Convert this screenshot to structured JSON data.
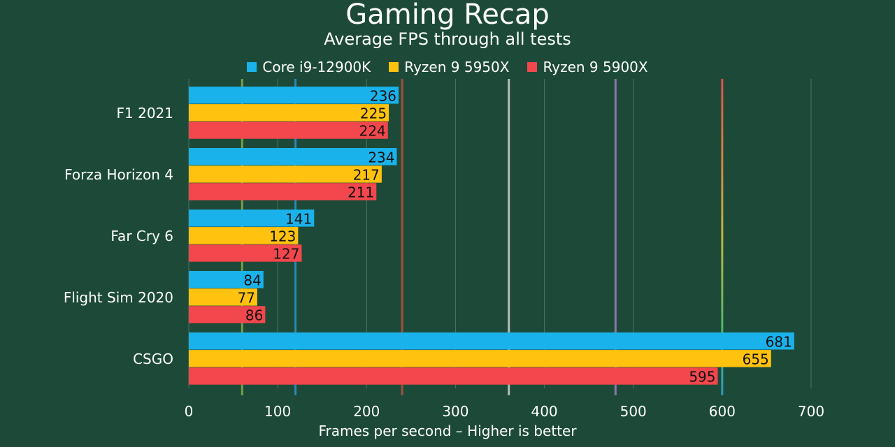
{
  "chart_data": {
    "type": "bar",
    "orientation": "horizontal",
    "title": "Gaming Recap",
    "subtitle": "Average FPS through all tests",
    "xlabel": "Frames per second – Higher is better",
    "ylabel": "",
    "xlim": [
      0,
      700
    ],
    "xticks": [
      0,
      100,
      200,
      300,
      400,
      500,
      600,
      700
    ],
    "grid": true,
    "legend_placement": "top",
    "reference_lines": [
      60,
      120,
      240,
      360,
      480,
      600
    ],
    "categories": [
      "F1 2021",
      "Forza Horizon 4",
      "Far Cry 6",
      "Flight Sim 2020",
      "CSGO"
    ],
    "series": [
      {
        "name": "Core i9-12900K",
        "color": "#1ab2ea",
        "values": [
          236,
          234,
          141,
          84,
          681
        ]
      },
      {
        "name": "Ryzen 9 5950X",
        "color": "#ffc20e",
        "values": [
          225,
          217,
          123,
          77,
          655
        ]
      },
      {
        "name": "Ryzen 9 5900X",
        "color": "#f2474d",
        "values": [
          224,
          211,
          127,
          86,
          595
        ]
      }
    ]
  }
}
